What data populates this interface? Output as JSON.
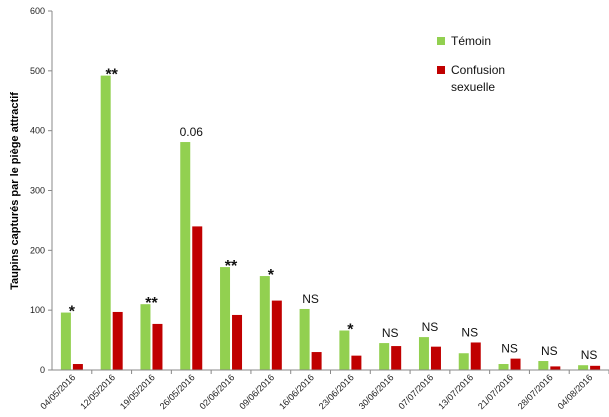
{
  "chart_data": {
    "type": "bar",
    "categories": [
      "04/05/2016",
      "12/05/2016",
      "19/05/2016",
      "26/05/2016",
      "02/06/2016",
      "09/06/2016",
      "16/06/2016",
      "23/06/2016",
      "30/06/2016",
      "07/07/2016",
      "13/07/2016",
      "21/07/2016",
      "28/07/2016",
      "04/08/2016"
    ],
    "series": [
      {
        "name": "Témoin",
        "color": "#92d050",
        "values": [
          96,
          492,
          110,
          381,
          172,
          157,
          102,
          66,
          45,
          55,
          28,
          10,
          15,
          8
        ]
      },
      {
        "name": "Confusion sexuelle",
        "color": "#c00000",
        "values": [
          10,
          97,
          77,
          240,
          92,
          116,
          30,
          24,
          40,
          39,
          46,
          19,
          6,
          7
        ]
      }
    ],
    "annotations": [
      "*",
      "**",
      "**",
      "0.06",
      "**",
      "*",
      "NS",
      "*",
      "NS",
      "NS",
      "NS",
      "NS",
      "NS",
      "NS"
    ],
    "ylabel": "Taupins capturés par le piège attractif",
    "xlabel": "",
    "ylim": [
      0,
      600
    ],
    "yticks": [
      0,
      100,
      200,
      300,
      400,
      500,
      600
    ],
    "legend": {
      "placement": "top-right",
      "labels": [
        "Témoin",
        "Confusion",
        "sexuelle"
      ]
    },
    "grid": false
  }
}
